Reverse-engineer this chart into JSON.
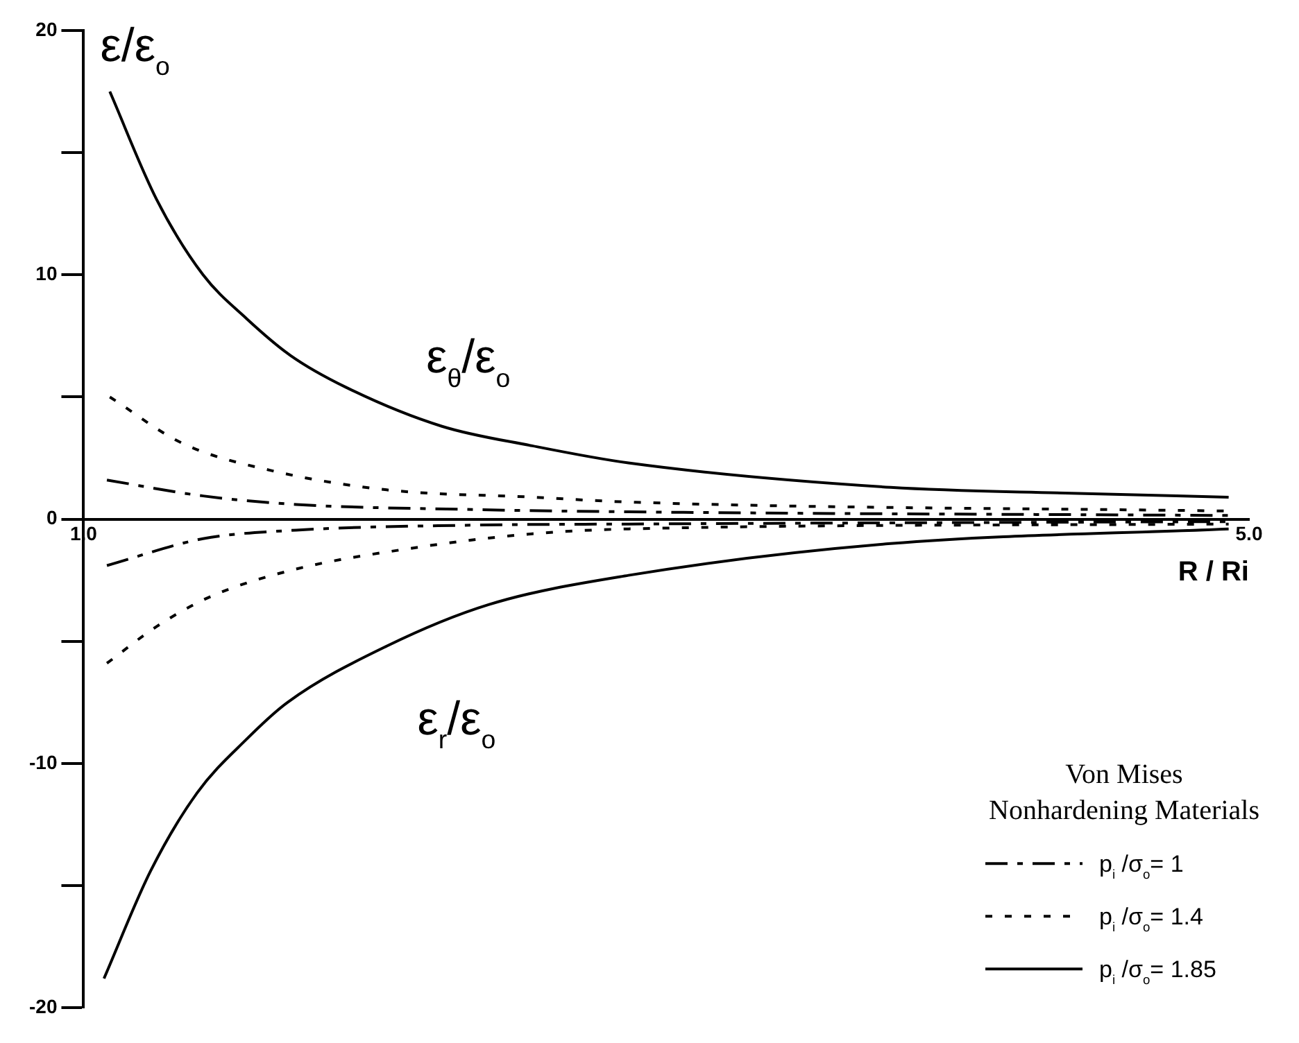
{
  "chart_data": {
    "type": "line",
    "ylabel": "ε/ε$_{o}$",
    "xlabel": "R / Ri",
    "legend_title": "Von Mises\nNonhardening Materials",
    "legend": "bottom right",
    "grid": false,
    "marker": "none",
    "xlim": [
      1,
      5
    ],
    "xticks": [
      {
        "value": 1,
        "label": "1.0"
      },
      {
        "value": 5,
        "label": "5.0"
      }
    ],
    "ylim": [
      -20,
      20
    ],
    "yticks": [
      -20,
      {
        "value": -15,
        "label": null
      },
      -10,
      {
        "value": -5,
        "label": null
      },
      0,
      {
        "value": 5,
        "label": null
      },
      10,
      {
        "value": 15,
        "label": null
      },
      20
    ],
    "series": [
      {
        "name": "p$_{i}$ /σ$_{o}$= 1",
        "color": "#000000",
        "line_style": "dashed",
        "x": [
          1.08,
          1.41,
          1.73,
          2.31,
          2.87,
          4.93
        ],
        "values": [
          1.6,
          0.95,
          0.6,
          0.4,
          0.3,
          0.15
        ]
      },
      {
        "color": "#000000",
        "line_style": "dashed",
        "x": [
          1.08,
          1.41,
          1.73,
          2.31,
          2.87,
          4.93
        ],
        "values": [
          -1.9,
          -0.8,
          -0.45,
          -0.25,
          -0.2,
          -0.1
        ]
      },
      {
        "name": "p$_{i}$ /σ$_{o}$= 1.4",
        "color": "#000000",
        "line_style": "dotted",
        "x": [
          1.09,
          1.34,
          1.64,
          2.04,
          2.54,
          2.87,
          4.93
        ],
        "values": [
          5.0,
          3.1,
          2.0,
          1.2,
          0.9,
          0.7,
          0.33
        ]
      },
      {
        "color": "#000000",
        "line_style": "dotted",
        "x": [
          1.08,
          1.25,
          1.43,
          1.71,
          2.12,
          2.54,
          2.87,
          4.93
        ],
        "values": [
          -5.9,
          -4.4,
          -3.2,
          -2.1,
          -1.2,
          -0.6,
          -0.4,
          -0.2
        ]
      },
      {
        "name": "p$_{i}$ /σ$_{o}$= 1.85",
        "color": "#000000",
        "line_style": "solid",
        "x": [
          1.09,
          1.25,
          1.41,
          1.56,
          1.71,
          1.9,
          2.23,
          2.54,
          2.87,
          3.77,
          4.39,
          4.93
        ],
        "values": [
          17.5,
          13.1,
          10.0,
          8.2,
          6.7,
          5.4,
          3.8,
          3.0,
          2.3,
          1.3,
          1.06,
          0.9
        ]
      },
      {
        "color": "#000000",
        "line_style": "solid",
        "x": [
          1.07,
          1.23,
          1.39,
          1.56,
          1.7,
          2.04,
          2.39,
          2.87,
          3.77,
          4.93
        ],
        "values": [
          -18.8,
          -14.4,
          -11.2,
          -9.0,
          -7.5,
          -5.2,
          -3.5,
          -2.3,
          -1.0,
          -0.4
        ]
      }
    ],
    "annotations": [
      "ε$_{θ}$/ε$_{o}$",
      "ε$_{r}$/ε$_{o}$"
    ]
  }
}
